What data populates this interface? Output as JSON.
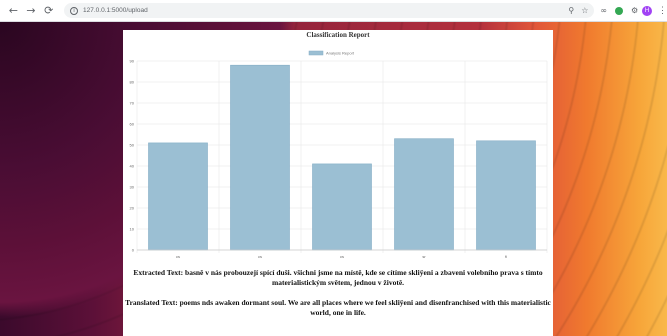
{
  "browser": {
    "url": "127.0.0.1:5000/upload",
    "avatar_initial": "H",
    "icons": [
      "back-icon",
      "forward-icon",
      "reload-icon",
      "info-icon",
      "zoom-icon",
      "star-icon",
      "extension-icon",
      "extension-icon",
      "puzzle-icon",
      "kebab-icon"
    ]
  },
  "colors": {
    "bar_fill": "#9bbfd3",
    "bar_stroke": "#86aec6",
    "accent_avatar": "#a142f4"
  },
  "chart_data": {
    "type": "bar",
    "title": "Classification Report",
    "categories": [
      "cs",
      "cs",
      "cs",
      "sr",
      "fi"
    ],
    "series": [
      {
        "name": "Analysis Report",
        "values": [
          51,
          88,
          41,
          53,
          52
        ]
      }
    ],
    "ylim": [
      0,
      90
    ],
    "yticks": [
      0,
      10,
      20,
      30,
      40,
      50,
      60,
      70,
      80,
      90
    ],
    "grid": true,
    "legend": "top"
  },
  "report": {
    "extracted_label": "Extracted Text:",
    "extracted_text": "basně v nás probouzejí spící duši. všichni jsme na místě, kde se cítíme skliÿeni a zbaveni volebního prava s tímto materialistickým světem, jednou v životě.",
    "translated_label": "Translated Text:",
    "translated_text": "poems nds awaken dormant soul. We are all places where we feel skliÿeni and disenfranchised with this materialistic world, one in life."
  }
}
